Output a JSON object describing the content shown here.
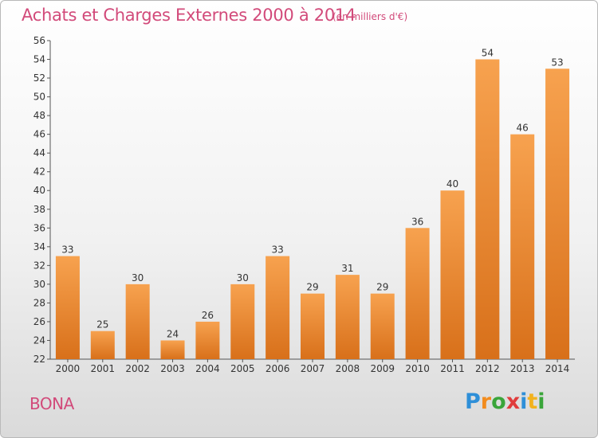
{
  "title": "Achats et Charges Externes 2000 à 2014",
  "subtitle": "(en milliers d'€)",
  "commune": "BONA",
  "logo": {
    "letters": [
      "P",
      "r",
      "o",
      "x",
      "i",
      "t",
      "i"
    ],
    "colors": [
      "#2e8fd8",
      "#f28c1e",
      "#3aa53a",
      "#e03c3c",
      "#2e8fd8",
      "#f2b21e",
      "#3aa53a"
    ]
  },
  "chart_data": {
    "type": "bar",
    "categories": [
      "2000",
      "2001",
      "2002",
      "2003",
      "2004",
      "2005",
      "2006",
      "2007",
      "2008",
      "2009",
      "2010",
      "2011",
      "2012",
      "2013",
      "2014"
    ],
    "values": [
      33,
      25,
      30,
      24,
      26,
      30,
      33,
      29,
      31,
      29,
      36,
      40,
      54,
      46,
      53
    ],
    "ylim": [
      22,
      56
    ],
    "yticks": [
      22,
      24,
      26,
      28,
      30,
      32,
      34,
      36,
      38,
      40,
      42,
      44,
      46,
      48,
      50,
      52,
      54,
      56
    ],
    "grid": false,
    "bar_color_light": "#f7a24f",
    "bar_color_dark": "#d8701a"
  }
}
